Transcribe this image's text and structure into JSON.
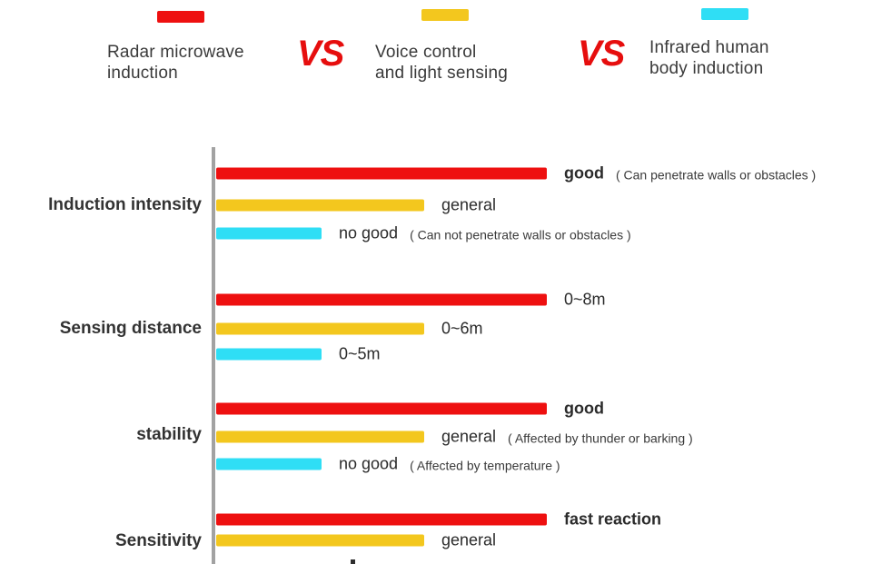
{
  "colors": {
    "red": "#ee1010",
    "yellow": "#f3c71e",
    "cyan": "#2fdef5",
    "vs_red": "#e60e0e",
    "axis_gray": "#a2a2a2"
  },
  "header": {
    "vs": "VS",
    "legend": [
      {
        "name": "radar-microwave-induction",
        "color_key": "red",
        "lines": [
          "Radar microwave",
          "induction"
        ]
      },
      {
        "name": "voice-control-light",
        "color_key": "yellow",
        "lines": [
          "Voice control",
          "and light sensing"
        ]
      },
      {
        "name": "infrared-human-body",
        "color_key": "cyan",
        "lines": [
          "Infrared human",
          "body induction"
        ]
      }
    ]
  },
  "chart_data": {
    "type": "bar",
    "orientation": "horizontal",
    "grid": false,
    "legend_position": "top",
    "legend": [
      {
        "name": "Radar microwave induction",
        "color": "#ee1010"
      },
      {
        "name": "Voice control and light sensing",
        "color": "#f3c71e"
      },
      {
        "name": "Infrared human body induction",
        "color": "#2fdef5"
      }
    ],
    "categories": [
      "Induction intensity",
      "Sensing distance",
      "stability",
      "Sensitivity"
    ],
    "bar_length_scale": "fraction of longest (red) bar",
    "groups": [
      {
        "category": "Induction intensity",
        "bars": [
          {
            "series": "Radar microwave induction",
            "color_key": "red",
            "frac": 1.0,
            "value": "good",
            "note": "( Can penetrate walls or obstacles )",
            "bold": true
          },
          {
            "series": "Voice control and light sensing",
            "color_key": "yellow",
            "frac": 0.63,
            "value": "general",
            "note": "",
            "bold": false
          },
          {
            "series": "Infrared human body induction",
            "color_key": "cyan",
            "frac": 0.32,
            "value": "no good",
            "note": "( Can not penetrate walls or obstacles )",
            "bold": false
          }
        ]
      },
      {
        "category": "Sensing distance",
        "bars": [
          {
            "series": "Radar microwave induction",
            "color_key": "red",
            "frac": 1.0,
            "value": "0~8m",
            "note": "",
            "bold": false
          },
          {
            "series": "Voice control and light sensing",
            "color_key": "yellow",
            "frac": 0.63,
            "value": "0~6m",
            "note": "",
            "bold": false
          },
          {
            "series": "Infrared human body induction",
            "color_key": "cyan",
            "frac": 0.32,
            "value": "0~5m",
            "note": "",
            "bold": false
          }
        ]
      },
      {
        "category": "stability",
        "bars": [
          {
            "series": "Radar microwave induction",
            "color_key": "red",
            "frac": 1.0,
            "value": "good",
            "note": "",
            "bold": true
          },
          {
            "series": "Voice control and light sensing",
            "color_key": "yellow",
            "frac": 0.63,
            "value": "general",
            "note": "( Affected by thunder or barking )",
            "bold": false
          },
          {
            "series": "Infrared human body induction",
            "color_key": "cyan",
            "frac": 0.32,
            "value": "no good",
            "note": "( Affected by temperature )",
            "bold": false
          }
        ]
      },
      {
        "category": "Sensitivity",
        "bars": [
          {
            "series": "Radar microwave induction",
            "color_key": "red",
            "frac": 1.0,
            "value": "fast reaction",
            "note": "",
            "bold": true
          },
          {
            "series": "Voice control and light sensing",
            "color_key": "yellow",
            "frac": 0.63,
            "value": "general",
            "note": "",
            "bold": false
          }
        ]
      }
    ]
  }
}
